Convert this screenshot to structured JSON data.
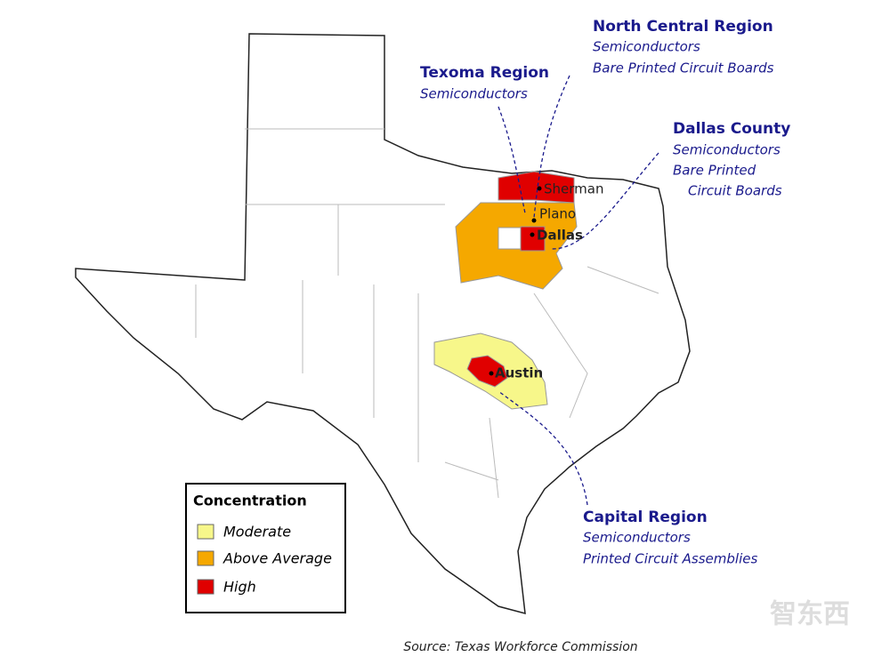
{
  "regions": [
    {
      "name": "Texoma Region",
      "industries": [
        "Semiconductors"
      ]
    },
    {
      "name": "North Central Region",
      "industries": [
        "Semiconductors",
        "Bare Printed Circuit Boards"
      ]
    },
    {
      "name": "Dallas County",
      "industries": [
        "Semiconductors",
        "Bare Printed",
        "Circuit Boards"
      ]
    },
    {
      "name": "Capital Region",
      "industries": [
        "Semiconductors",
        "Printed Circuit Assemblies"
      ]
    }
  ],
  "cities": [
    "Sherman",
    "Plano",
    "Dallas",
    "Austin"
  ],
  "legend": {
    "title": "Concentration",
    "items": [
      "Moderate",
      "Above Average",
      "High"
    ]
  },
  "source": "Source: Texas Workforce Commission",
  "watermark": "智东西"
}
